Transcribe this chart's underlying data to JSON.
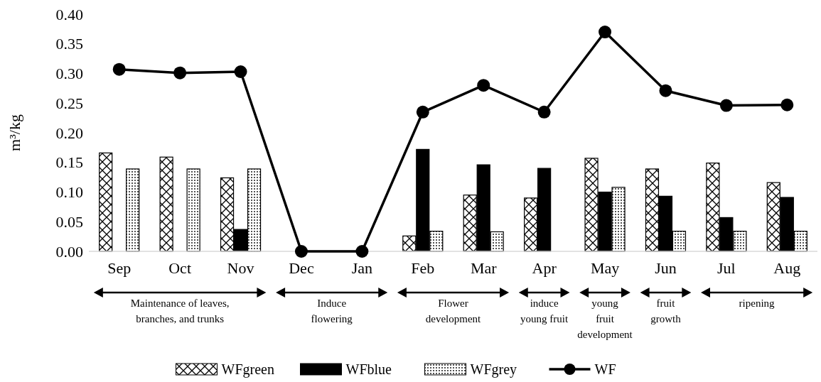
{
  "chart_data": {
    "type": "bar",
    "ylabel": "m³/kg",
    "categories": [
      "Sep",
      "Oct",
      "Nov",
      "Dec",
      "Jan",
      "Feb",
      "Mar",
      "Apr",
      "May",
      "Jun",
      "Jul",
      "Aug"
    ],
    "series": [
      {
        "name": "WFgreen",
        "color": "#000000",
        "values": [
          0.166,
          0.159,
          0.124,
          0,
          0,
          0.026,
          0.095,
          0.09,
          0.157,
          0.139,
          0.149,
          0.116
        ]
      },
      {
        "name": "WFblue",
        "color": "#000000",
        "values": [
          0,
          0,
          0.037,
          0,
          0,
          0.172,
          0.146,
          0.14,
          0.1,
          0.093,
          0.057,
          0.091
        ]
      },
      {
        "name": "WFgrey",
        "color": "#000000",
        "values": [
          0.139,
          0.139,
          0.139,
          0,
          0,
          0.034,
          0.033,
          0,
          0.108,
          0.034,
          0.034,
          0.034
        ]
      },
      {
        "name": "WF",
        "type": "line",
        "color": "#000000",
        "values": [
          0.307,
          0.301,
          0.303,
          0,
          0,
          0.235,
          0.28,
          0.235,
          0.37,
          0.271,
          0.246,
          0.247
        ]
      }
    ],
    "ylim": [
      0,
      0.4
    ],
    "yticks": [
      {
        "value": 0,
        "label": "0.00"
      },
      {
        "value": 0.05,
        "label": "0.05"
      },
      {
        "value": 0.1,
        "label": "0.10"
      },
      {
        "value": 0.15,
        "label": "0.15"
      },
      {
        "value": 0.2,
        "label": "0.20"
      },
      {
        "value": 0.25,
        "label": "0.25"
      },
      {
        "value": 0.3,
        "label": "0.30"
      },
      {
        "value": 0.35,
        "label": "0.35"
      },
      {
        "value": 0.4,
        "label": "0.40"
      }
    ],
    "marker": "circle",
    "legend": "bottom",
    "annotations": [
      "Maintenance of leaves,\nbranches, and trunks",
      "Induce\nflowering",
      "Flower\ndevelopment",
      "induce\nyoung fruit",
      "young\nfruit\ndevelopment",
      "fruit\ngrowth",
      "ripening"
    ]
  }
}
